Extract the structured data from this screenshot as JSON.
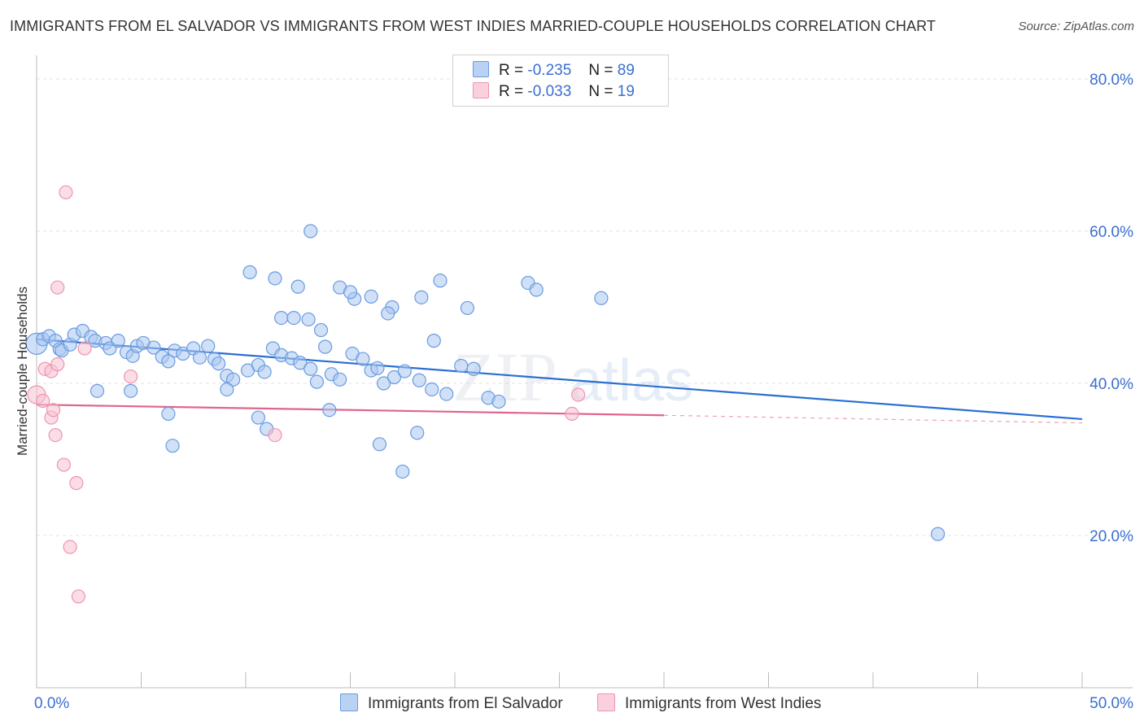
{
  "title": "IMMIGRANTS FROM EL SALVADOR VS IMMIGRANTS FROM WEST INDIES MARRIED-COUPLE HOUSEHOLDS CORRELATION CHART",
  "source": "Source: ZipAtlas.com",
  "colors": {
    "blue_fill": "#a9c7f0",
    "blue_stroke": "#6a9be0",
    "blue_line": "#2a6fd1",
    "pink_fill": "#f7c1d2",
    "pink_stroke": "#ee95b0",
    "pink_line": "#e0648f",
    "axis_text": "#3a6fd1"
  },
  "legend": {
    "rows": [
      {
        "r_label": "R =",
        "r_value": "-0.235",
        "n_label": "N =",
        "n_value": "89"
      },
      {
        "r_label": "R =",
        "r_value": "-0.033",
        "n_label": "N =",
        "n_value": "19"
      }
    ]
  },
  "bottom_legend": [
    "Immigrants from El Salvador",
    "Immigrants from West Indies"
  ],
  "watermark": {
    "zip": "ZIP",
    "atlas": "atlas"
  },
  "chart_data": {
    "type": "scatter",
    "title": "IMMIGRANTS FROM EL SALVADOR VS IMMIGRANTS FROM WEST INDIES MARRIED-COUPLE HOUSEHOLDS CORRELATION CHART",
    "xlabel": "",
    "ylabel": "Married-couple Households",
    "xlim": [
      0,
      50
    ],
    "ylim": [
      0,
      80
    ],
    "x_tick_labels": [
      "0.0%",
      "50.0%"
    ],
    "y_ticks": [
      20,
      40,
      60,
      80
    ],
    "y_tick_labels": [
      "20.0%",
      "40.0%",
      "60.0%",
      "80.0%"
    ],
    "grid": true,
    "series": [
      {
        "name": "Immigrants from El Salvador",
        "r": -0.235,
        "n": 89,
        "trend": {
          "x": [
            0,
            50
          ],
          "y": [
            45.8,
            35.3
          ]
        },
        "points": [
          [
            0.0,
            45.2
          ],
          [
            0.3,
            45.8
          ],
          [
            0.6,
            46.2
          ],
          [
            0.9,
            45.6
          ],
          [
            1.1,
            44.5
          ],
          [
            1.2,
            44.3
          ],
          [
            1.6,
            45.1
          ],
          [
            1.8,
            46.4
          ],
          [
            2.2,
            46.9
          ],
          [
            2.6,
            46.1
          ],
          [
            2.8,
            45.6
          ],
          [
            3.3,
            45.3
          ],
          [
            3.5,
            44.6
          ],
          [
            3.9,
            45.6
          ],
          [
            4.3,
            44.1
          ],
          [
            4.6,
            43.6
          ],
          [
            4.8,
            44.9
          ],
          [
            5.1,
            45.3
          ],
          [
            5.6,
            44.7
          ],
          [
            6.0,
            43.5
          ],
          [
            6.3,
            42.9
          ],
          [
            6.6,
            44.3
          ],
          [
            7.0,
            43.9
          ],
          [
            7.5,
            44.6
          ],
          [
            7.8,
            43.4
          ],
          [
            8.2,
            44.9
          ],
          [
            8.5,
            43.2
          ],
          [
            8.7,
            42.6
          ],
          [
            9.1,
            41.0
          ],
          [
            9.4,
            40.5
          ],
          [
            10.1,
            41.7
          ],
          [
            10.6,
            42.4
          ],
          [
            10.9,
            41.5
          ],
          [
            11.3,
            44.6
          ],
          [
            11.7,
            43.7
          ],
          [
            12.2,
            43.3
          ],
          [
            12.6,
            42.7
          ],
          [
            13.1,
            41.9
          ],
          [
            13.4,
            40.2
          ],
          [
            14.1,
            41.2
          ],
          [
            14.5,
            40.5
          ],
          [
            15.1,
            43.9
          ],
          [
            15.6,
            43.2
          ],
          [
            16.0,
            41.7
          ],
          [
            16.6,
            40.0
          ],
          [
            17.1,
            40.8
          ],
          [
            17.6,
            41.6
          ],
          [
            18.3,
            40.4
          ],
          [
            18.9,
            39.2
          ],
          [
            19.6,
            38.6
          ],
          [
            20.3,
            42.3
          ],
          [
            20.9,
            41.9
          ],
          [
            21.6,
            38.1
          ],
          [
            22.1,
            37.6
          ],
          [
            4.5,
            39.0
          ],
          [
            2.9,
            39.0
          ],
          [
            6.3,
            36.0
          ],
          [
            6.5,
            31.8
          ],
          [
            9.1,
            39.2
          ],
          [
            10.2,
            54.6
          ],
          [
            11.4,
            53.8
          ],
          [
            12.5,
            52.7
          ],
          [
            13.0,
            48.4
          ],
          [
            14.5,
            52.6
          ],
          [
            15.2,
            51.1
          ],
          [
            16.0,
            51.4
          ],
          [
            17.0,
            50.0
          ],
          [
            18.4,
            51.3
          ],
          [
            19.0,
            45.6
          ],
          [
            19.3,
            53.5
          ],
          [
            20.6,
            49.9
          ],
          [
            23.5,
            53.2
          ],
          [
            23.9,
            52.3
          ],
          [
            27.0,
            51.2
          ],
          [
            11.7,
            48.6
          ],
          [
            12.3,
            48.6
          ],
          [
            13.6,
            47.0
          ],
          [
            15.0,
            52.0
          ],
          [
            16.8,
            49.2
          ],
          [
            16.3,
            42.0
          ],
          [
            13.1,
            60.0
          ],
          [
            13.8,
            44.8
          ],
          [
            11.0,
            34.0
          ],
          [
            10.6,
            35.5
          ],
          [
            14.0,
            36.5
          ],
          [
            16.4,
            32.0
          ],
          [
            17.5,
            28.4
          ],
          [
            18.2,
            33.5
          ],
          [
            43.1,
            20.2
          ]
        ]
      },
      {
        "name": "Immigrants from West Indies",
        "r": -0.033,
        "n": 19,
        "trend": {
          "x": [
            0,
            30
          ],
          "y": [
            37.2,
            35.8
          ],
          "dashed_to_x": 50,
          "dashed_to_y": 34.8
        },
        "points": [
          [
            0.0,
            38.5
          ],
          [
            0.3,
            37.7
          ],
          [
            0.4,
            41.9
          ],
          [
            0.7,
            41.6
          ],
          [
            0.7,
            35.5
          ],
          [
            0.8,
            36.5
          ],
          [
            0.9,
            33.2
          ],
          [
            1.0,
            52.6
          ],
          [
            1.3,
            29.3
          ],
          [
            1.4,
            65.1
          ],
          [
            1.6,
            18.5
          ],
          [
            1.9,
            26.9
          ],
          [
            2.0,
            12.0
          ],
          [
            2.3,
            44.6
          ],
          [
            4.5,
            40.9
          ],
          [
            11.4,
            33.2
          ],
          [
            25.9,
            38.5
          ],
          [
            25.6,
            36.0
          ],
          [
            1.0,
            42.5
          ]
        ]
      }
    ]
  }
}
